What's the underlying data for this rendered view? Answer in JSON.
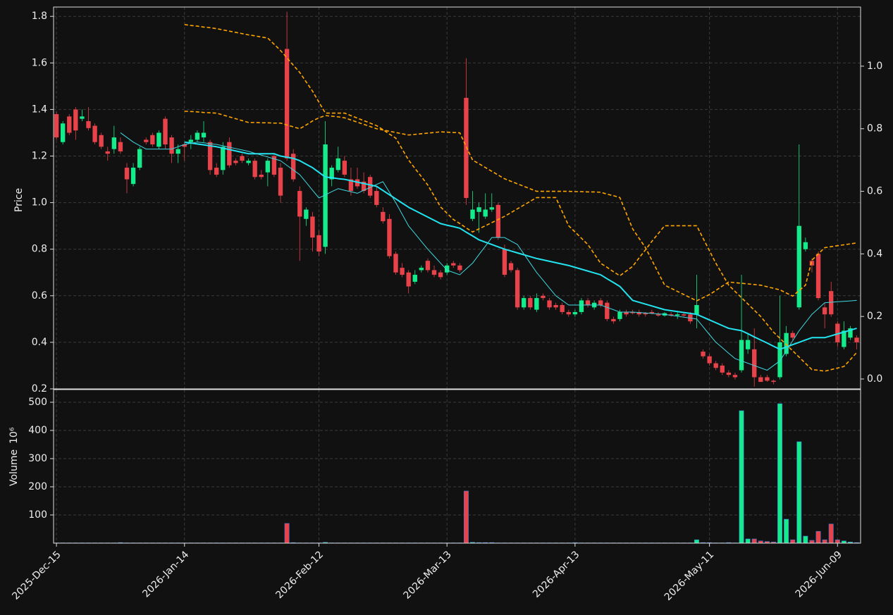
{
  "chart_data": {
    "type": "candlestick",
    "ylabel": "Price",
    "volume_label": "Volume",
    "volume_exponent": "10⁶",
    "grid": true,
    "up_color": "#14ec8c",
    "down_color": "#e8424a",
    "xlim": [
      -0.45,
      125.6
    ],
    "xticks": [
      {
        "value": 0,
        "label": "2025-Dec-15"
      },
      {
        "value": 20,
        "label": "2026-Jan-14"
      },
      {
        "value": 41,
        "label": "2026-Feb-12"
      },
      {
        "value": 61,
        "label": "2026-Mar-13"
      },
      {
        "value": 81,
        "label": "2026-Apr-13"
      },
      {
        "value": 102,
        "label": "2026-May-11"
      },
      {
        "value": 122,
        "label": "2026-Jun-09"
      }
    ],
    "ylim": [
      0.2,
      1.84
    ],
    "yticks": [
      0.2,
      0.4,
      0.6,
      0.8,
      {
        "value": 1.0,
        "label": "1.0"
      },
      1.2,
      1.4,
      1.6,
      1.8
    ],
    "y2lim": [
      -0.0315,
      1.189
    ],
    "y2ticks": [
      {
        "value": 0,
        "label": "0.0"
      },
      0.2,
      0.4,
      0.6,
      0.8,
      {
        "value": 1.0,
        "label": "1.0"
      }
    ],
    "volume_ylim": [
      0,
      545
    ],
    "volume_yticks": [
      100,
      200,
      300,
      400,
      500
    ],
    "open": [
      1.38,
      1.26,
      1.37,
      1.4,
      1.36,
      1.35,
      1.33,
      1.29,
      1.22,
      1.23,
      1.26,
      1.15,
      1.08,
      1.15,
      1.27,
      1.29,
      1.24,
      1.36,
      1.28,
      1.21,
      1.25,
      1.26,
      1.27,
      1.28,
      1.26,
      1.15,
      1.14,
      1.26,
      1.18,
      1.2,
      1.17,
      1.18,
      1.12,
      1.13,
      1.2,
      1.15,
      1.66,
      1.21,
      1.05,
      0.93,
      0.94,
      0.86,
      0.81,
      1.1,
      1.14,
      1.18,
      1.1,
      1.1,
      1.09,
      1.11,
      1.05,
      0.96,
      0.93,
      0.78,
      0.72,
      0.7,
      0.66,
      0.71,
      0.75,
      0.71,
      0.7,
      0.7,
      0.74,
      0.73,
      1.45,
      0.93,
      0.96,
      0.94,
      0.97,
      0.99,
      0.8,
      0.74,
      0.71,
      0.55,
      0.59,
      0.54,
      0.6,
      0.58,
      0.56,
      0.56,
      0.53,
      0.52,
      0.53,
      0.58,
      0.55,
      0.58,
      0.57,
      0.5,
      0.5,
      0.53,
      0.53,
      0.53,
      0.525,
      0.53,
      0.52,
      0.515,
      0.52,
      0.515,
      0.52,
      0.52,
      0.52,
      0.36,
      0.34,
      0.31,
      0.3,
      0.27,
      0.26,
      0.28,
      0.37,
      0.37,
      0.25,
      0.25,
      0.235,
      0.25,
      0.35,
      0.44,
      0.55,
      0.8,
      0.75,
      0.78,
      0.55,
      0.62,
      0.48,
      0.38,
      0.42,
      0.42
    ],
    "high": [
      1.39,
      1.35,
      1.38,
      1.41,
      1.4,
      1.41,
      1.34,
      1.3,
      1.24,
      1.33,
      1.28,
      1.17,
      1.17,
      1.24,
      1.28,
      1.3,
      1.31,
      1.37,
      1.29,
      1.25,
      1.26,
      1.29,
      1.31,
      1.35,
      1.27,
      1.17,
      1.26,
      1.28,
      1.19,
      1.21,
      1.19,
      1.19,
      1.14,
      1.19,
      1.21,
      1.17,
      1.82,
      1.23,
      1.07,
      0.98,
      0.96,
      0.88,
      1.35,
      1.16,
      1.24,
      1.2,
      1.15,
      1.15,
      1.13,
      1.12,
      1.07,
      0.98,
      0.95,
      0.79,
      0.74,
      0.71,
      0.71,
      0.73,
      0.76,
      0.73,
      0.71,
      0.74,
      0.75,
      0.74,
      1.62,
      1.05,
      1.0,
      1.04,
      1.04,
      1.0,
      0.82,
      0.75,
      0.72,
      0.6,
      0.6,
      0.61,
      0.61,
      0.59,
      0.57,
      0.57,
      0.54,
      0.54,
      0.59,
      0.59,
      0.58,
      0.59,
      0.58,
      0.51,
      0.54,
      0.54,
      0.54,
      0.54,
      0.53,
      0.54,
      0.53,
      0.53,
      0.53,
      0.53,
      0.53,
      0.53,
      0.69,
      0.37,
      0.35,
      0.32,
      0.31,
      0.28,
      0.27,
      0.69,
      0.44,
      0.46,
      0.26,
      0.26,
      0.24,
      0.6,
      0.47,
      0.45,
      1.25,
      0.85,
      0.76,
      0.79,
      0.57,
      0.66,
      0.49,
      0.49,
      0.47,
      0.43
    ],
    "low": [
      1.27,
      1.25,
      1.29,
      1.27,
      1.35,
      1.31,
      1.25,
      1.23,
      1.18,
      1.21,
      1.21,
      1.04,
      1.07,
      1.14,
      1.25,
      1.24,
      1.23,
      1.23,
      1.17,
      1.17,
      1.18,
      1.23,
      1.26,
      1.26,
      1.12,
      1.11,
      1.12,
      1.15,
      1.16,
      1.17,
      1.16,
      1.1,
      1.1,
      1.07,
      1.11,
      1.0,
      1.18,
      1.09,
      0.75,
      0.9,
      0.79,
      0.77,
      0.78,
      1.07,
      1.13,
      1.11,
      1.03,
      1.06,
      1.04,
      1.02,
      0.98,
      0.91,
      0.76,
      0.69,
      0.68,
      0.61,
      0.65,
      0.7,
      0.7,
      0.68,
      0.67,
      0.69,
      0.72,
      0.7,
      0.99,
      0.92,
      0.87,
      0.93,
      0.96,
      0.84,
      0.68,
      0.7,
      0.54,
      0.54,
      0.54,
      0.53,
      0.58,
      0.54,
      0.54,
      0.52,
      0.51,
      0.51,
      0.52,
      0.55,
      0.54,
      0.55,
      0.49,
      0.48,
      0.49,
      0.51,
      0.52,
      0.51,
      0.51,
      0.52,
      0.51,
      0.51,
      0.51,
      0.5,
      0.51,
      0.48,
      0.46,
      0.33,
      0.3,
      0.28,
      0.26,
      0.25,
      0.24,
      0.27,
      0.35,
      0.21,
      0.23,
      0.23,
      0.22,
      0.24,
      0.34,
      0.41,
      0.54,
      0.79,
      0.7,
      0.58,
      0.46,
      0.51,
      0.38,
      0.37,
      0.41,
      0.37
    ],
    "close": [
      1.28,
      1.34,
      1.3,
      1.31,
      1.37,
      1.32,
      1.26,
      1.24,
      1.21,
      1.28,
      1.22,
      1.1,
      1.15,
      1.23,
      1.26,
      1.25,
      1.3,
      1.25,
      1.21,
      1.23,
      1.24,
      1.27,
      1.3,
      1.3,
      1.14,
      1.12,
      1.24,
      1.16,
      1.17,
      1.18,
      1.18,
      1.11,
      1.11,
      1.18,
      1.12,
      1.03,
      1.19,
      1.1,
      0.94,
      0.97,
      0.85,
      0.79,
      1.25,
      1.15,
      1.19,
      1.12,
      1.05,
      1.07,
      1.05,
      1.03,
      0.99,
      0.92,
      0.77,
      0.7,
      0.69,
      0.64,
      0.69,
      0.72,
      0.71,
      0.69,
      0.68,
      0.73,
      0.73,
      0.71,
      1.02,
      0.97,
      0.98,
      0.97,
      0.98,
      0.85,
      0.69,
      0.71,
      0.55,
      0.59,
      0.55,
      0.59,
      0.59,
      0.55,
      0.55,
      0.53,
      0.52,
      0.53,
      0.58,
      0.56,
      0.57,
      0.56,
      0.5,
      0.49,
      0.53,
      0.52,
      0.525,
      0.52,
      0.52,
      0.525,
      0.515,
      0.525,
      0.515,
      0.52,
      0.515,
      0.49,
      0.56,
      0.34,
      0.31,
      0.29,
      0.27,
      0.26,
      0.25,
      0.41,
      0.41,
      0.25,
      0.23,
      0.235,
      0.23,
      0.4,
      0.44,
      0.42,
      0.9,
      0.83,
      0.73,
      0.59,
      0.52,
      0.52,
      0.4,
      0.45,
      0.46,
      0.4
    ],
    "volume": [
      1,
      1,
      1,
      1,
      1,
      1,
      1,
      1,
      1,
      1,
      2,
      1,
      1,
      1,
      1,
      1,
      1,
      1,
      1,
      1,
      1,
      1,
      1,
      1,
      1,
      1,
      1,
      1,
      1,
      1,
      1,
      1,
      1,
      1,
      1,
      1,
      70,
      2,
      1,
      1,
      1,
      1,
      3,
      1,
      1,
      1,
      1,
      1,
      1,
      1,
      1,
      1,
      1,
      1,
      1,
      1,
      1,
      1,
      1,
      1,
      1,
      1,
      1,
      1,
      185,
      3,
      2,
      2,
      2,
      1,
      1,
      1,
      1,
      1,
      1,
      1,
      1,
      1,
      1,
      1,
      1,
      2,
      1,
      1,
      1,
      1,
      1,
      1,
      1,
      1,
      1,
      1,
      1,
      1,
      1,
      1,
      1,
      1,
      1,
      1,
      12,
      2,
      2,
      1,
      1,
      2,
      1,
      470,
      15,
      15,
      8,
      6,
      4,
      495,
      85,
      12,
      360,
      25,
      10,
      42,
      12,
      68,
      12,
      8,
      4,
      2
    ],
    "lines": [
      {
        "color": "#22e4f0",
        "axis": "y",
        "dashed": false,
        "values": [
          null,
          null,
          null,
          null,
          null,
          null,
          null,
          null,
          null,
          null,
          null,
          null,
          null,
          null,
          null,
          null,
          null,
          null,
          null,
          null,
          1.26,
          1.256,
          1.252,
          1.248,
          1.244,
          1.24,
          1.234,
          1.228,
          1.222,
          1.216,
          1.21,
          1.21,
          1.21,
          1.21,
          1.21,
          1.2,
          1.195,
          1.19,
          1.18,
          1.165,
          1.15,
          1.13,
          1.11,
          1.107,
          1.103,
          1.1,
          1.094,
          1.088,
          1.082,
          1.076,
          1.07,
          1.052,
          1.034,
          1.016,
          0.998,
          0.98,
          0.966,
          0.952,
          0.938,
          0.924,
          0.91,
          0.903,
          0.897,
          0.89,
          0.873,
          0.857,
          0.84,
          0.83,
          0.82,
          0.81,
          0.8,
          0.792,
          0.784,
          0.776,
          0.768,
          0.76,
          0.754,
          0.748,
          0.742,
          0.736,
          0.73,
          0.722,
          0.714,
          0.706,
          0.698,
          0.69,
          0.673,
          0.657,
          0.64,
          0.61,
          0.58,
          0.572,
          0.564,
          0.556,
          0.548,
          0.54,
          0.536,
          0.532,
          0.528,
          0.524,
          0.52,
          0.508,
          0.496,
          0.484,
          0.472,
          0.46,
          0.455,
          0.45,
          0.437,
          0.423,
          0.41,
          0.397,
          0.383,
          0.37,
          0.38,
          0.39,
          0.4,
          0.41,
          0.42,
          0.42,
          0.42,
          0.428,
          0.436,
          0.444,
          0.452,
          0.46
        ]
      },
      {
        "color": "#3fd8e0",
        "axis": "y",
        "dashed": false,
        "values": [
          null,
          null,
          null,
          null,
          null,
          null,
          null,
          null,
          null,
          null,
          1.3,
          1.28,
          1.26,
          1.245,
          1.23,
          1.23,
          1.23,
          1.23,
          1.23,
          1.24,
          1.25,
          1.255,
          1.26,
          1.257,
          1.253,
          1.25,
          1.244,
          1.238,
          1.232,
          1.226,
          1.22,
          1.212,
          1.204,
          1.196,
          1.188,
          1.18,
          1.16,
          1.14,
          1.12,
          1.087,
          1.053,
          1.02,
          1.033,
          1.047,
          1.06,
          1.053,
          1.047,
          1.04,
          1.053,
          1.065,
          1.078,
          1.09,
          1.045,
          1.0,
          0.95,
          0.9,
          0.867,
          0.833,
          0.8,
          0.77,
          0.74,
          0.71,
          0.7,
          0.69,
          0.715,
          0.74,
          0.777,
          0.813,
          0.85,
          0.85,
          0.85,
          0.835,
          0.82,
          0.78,
          0.74,
          0.7,
          0.667,
          0.633,
          0.6,
          0.58,
          0.56,
          0.56,
          0.56,
          0.56,
          0.56,
          0.56,
          0.55,
          0.54,
          0.53,
          0.53,
          0.53,
          0.528,
          0.526,
          0.524,
          0.522,
          0.52,
          0.516,
          0.512,
          0.508,
          0.504,
          0.5,
          0.467,
          0.433,
          0.4,
          0.377,
          0.353,
          0.33,
          0.32,
          0.31,
          0.3,
          0.29,
          0.28,
          0.3,
          0.32,
          0.363,
          0.407,
          0.45,
          0.485,
          0.52,
          0.545,
          0.57,
          0.572,
          0.574,
          0.576,
          0.578,
          0.58
        ]
      },
      {
        "color": "#ffa500",
        "axis": "y2",
        "dashed": true,
        "values": [
          null,
          null,
          null,
          null,
          null,
          null,
          null,
          null,
          null,
          null,
          null,
          null,
          null,
          null,
          null,
          null,
          null,
          null,
          null,
          null,
          0.856,
          0.855,
          0.854,
          0.852,
          0.851,
          0.85,
          0.844,
          0.838,
          0.832,
          0.826,
          0.82,
          0.82,
          0.819,
          0.819,
          0.818,
          0.818,
          0.812,
          0.806,
          0.8,
          0.812,
          0.825,
          0.835,
          0.842,
          0.84,
          0.838,
          0.835,
          0.828,
          0.821,
          0.814,
          0.807,
          0.8,
          0.796,
          0.792,
          0.788,
          0.784,
          0.78,
          0.782,
          0.784,
          0.786,
          0.788,
          0.79,
          0.789,
          0.788,
          0.787,
          0.743,
          0.7,
          0.688,
          0.676,
          0.664,
          0.652,
          0.64,
          0.632,
          0.624,
          0.616,
          0.608,
          0.6,
          0.6,
          0.6,
          0.6,
          0.6,
          0.6,
          0.599,
          0.599,
          0.598,
          0.598,
          0.597,
          0.591,
          0.586,
          0.58,
          0.53,
          0.48,
          0.45,
          0.42,
          0.38,
          0.34,
          0.3,
          0.29,
          0.28,
          0.27,
          0.26,
          0.25,
          0.26,
          0.27,
          0.283,
          0.297,
          0.31,
          0.308,
          0.306,
          0.304,
          0.302,
          0.3,
          0.295,
          0.29,
          0.285,
          0.275,
          0.265,
          0.283,
          0.3,
          0.38,
          0.4,
          0.42,
          0.423,
          0.426,
          0.429,
          0.432,
          0.435
        ]
      },
      {
        "color": "#ffa500",
        "axis": "y2",
        "dashed": true,
        "values": [
          null,
          null,
          null,
          null,
          null,
          null,
          null,
          null,
          null,
          null,
          null,
          null,
          null,
          null,
          null,
          null,
          null,
          null,
          null,
          null,
          1.133,
          1.13,
          1.128,
          1.125,
          1.123,
          1.12,
          1.116,
          1.112,
          1.108,
          1.104,
          1.1,
          1.097,
          1.093,
          1.09,
          1.07,
          1.05,
          1.027,
          1.003,
          0.98,
          0.95,
          0.92,
          0.885,
          0.85,
          0.85,
          0.85,
          0.85,
          0.842,
          0.834,
          0.826,
          0.818,
          0.81,
          0.797,
          0.783,
          0.77,
          0.735,
          0.7,
          0.673,
          0.647,
          0.62,
          0.585,
          0.55,
          0.53,
          0.51,
          0.497,
          0.483,
          0.47,
          0.48,
          0.49,
          0.5,
          0.51,
          0.52,
          0.532,
          0.544,
          0.556,
          0.568,
          0.58,
          0.58,
          0.58,
          0.58,
          0.535,
          0.49,
          0.47,
          0.45,
          0.43,
          0.4,
          0.37,
          0.357,
          0.343,
          0.33,
          0.345,
          0.36,
          0.387,
          0.413,
          0.44,
          0.465,
          0.49,
          0.49,
          0.49,
          0.49,
          0.49,
          0.49,
          0.45,
          0.41,
          0.37,
          0.335,
          0.3,
          0.28,
          0.26,
          0.24,
          0.22,
          0.2,
          0.175,
          0.15,
          0.13,
          0.11,
          0.09,
          0.07,
          0.05,
          0.03,
          0.028,
          0.025,
          0.03,
          0.035,
          0.04,
          0.062,
          0.085
        ]
      }
    ]
  }
}
